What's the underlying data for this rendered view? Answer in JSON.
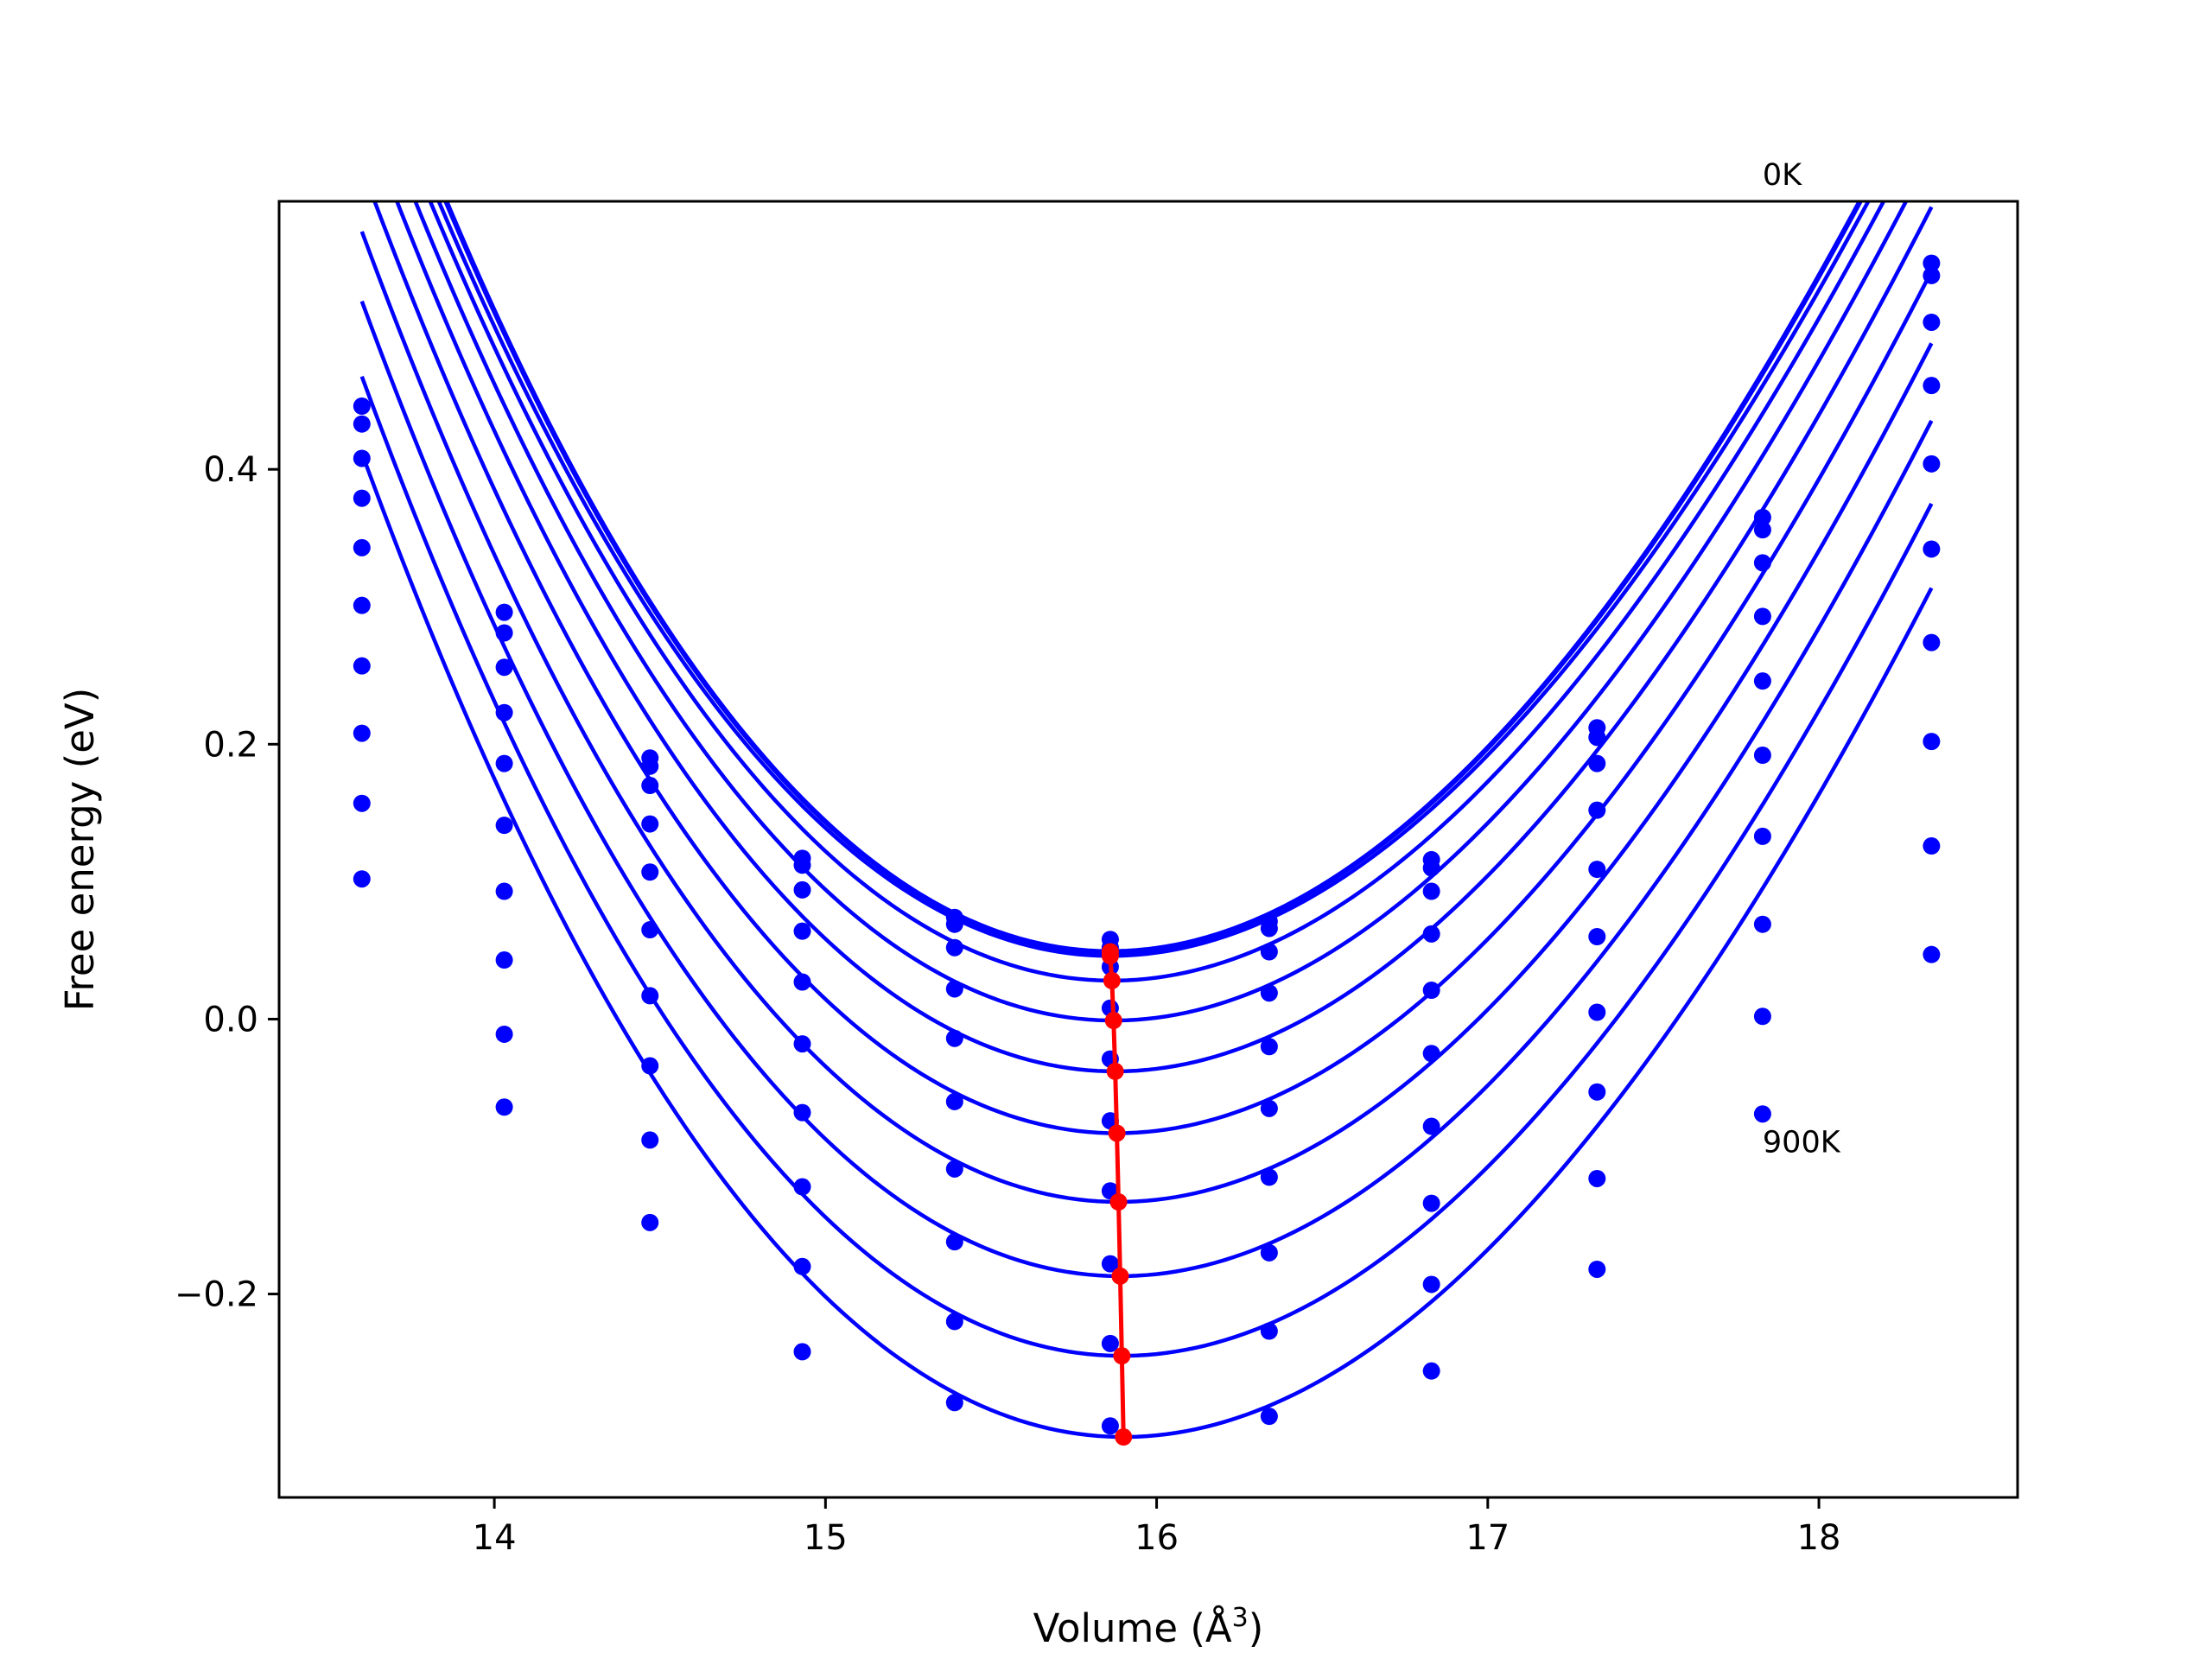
{
  "chart_data": {
    "type": "line",
    "title": "",
    "xlabel": "Volume (Å",
    "xlabel_sup": "3",
    "xlabel_close": ")",
    "ylabel": "Free energy (eV)",
    "xlim": [
      13.35,
      18.6
    ],
    "ylim": [
      -0.348,
      0.595
    ],
    "xticks": [
      14,
      15,
      16,
      17,
      18
    ],
    "yticks": [
      -0.2,
      0.0,
      0.2,
      0.4
    ],
    "ytick_labels": [
      "−0.2",
      "0.0",
      "0.2",
      "0.4"
    ],
    "grid": false,
    "legend": "none",
    "colors": {
      "curves": "#0000ff",
      "minimum": "#ff0000"
    },
    "annotations": [
      {
        "text": "0K",
        "x": 17.83,
        "y": 0.607
      },
      {
        "text": "900K",
        "x": 17.83,
        "y": -0.097
      }
    ],
    "sample_volumes": [
      13.6,
      14.03,
      14.47,
      14.93,
      15.39,
      15.86,
      16.34,
      16.83,
      17.33,
      17.83,
      18.34
    ],
    "series": [
      {
        "min_volume": 15.86,
        "min_energy": 0.049,
        "a": 0.122,
        "b": 0.187,
        "points": [
          0.446,
          0.296,
          0.19,
          0.117,
          0.074,
          0.058,
          0.071,
          0.116,
          0.212,
          0.365,
          0.55
        ]
      },
      {
        "min_volume": 15.86,
        "min_energy": 0.046,
        "a": 0.12,
        "b": 0.185,
        "points": [
          0.433,
          0.281,
          0.184,
          0.112,
          0.069,
          0.052,
          0.066,
          0.11,
          0.205,
          0.356,
          0.541
        ]
      },
      {
        "min_volume": 15.865,
        "min_energy": 0.028,
        "a": 0.12,
        "b": 0.186,
        "points": [
          0.408,
          0.256,
          0.17,
          0.094,
          0.052,
          0.038,
          0.049,
          0.093,
          0.186,
          0.332,
          0.507
        ]
      },
      {
        "min_volume": 15.87,
        "min_energy": -0.001,
        "a": 0.12,
        "b": 0.185,
        "points": [
          0.379,
          0.223,
          0.142,
          0.064,
          0.022,
          0.008,
          0.019,
          0.062,
          0.152,
          0.293,
          0.461
        ]
      },
      {
        "min_volume": 15.875,
        "min_energy": -0.038,
        "a": 0.12,
        "b": 0.186,
        "points": [
          0.343,
          0.186,
          0.107,
          0.027,
          -0.014,
          -0.029,
          -0.02,
          0.021,
          0.109,
          0.246,
          0.404
        ]
      },
      {
        "min_volume": 15.88,
        "min_energy": -0.083,
        "a": 0.12,
        "b": 0.185,
        "points": [
          0.301,
          0.141,
          0.065,
          -0.018,
          -0.06,
          -0.074,
          -0.065,
          -0.025,
          0.06,
          0.192,
          0.342
        ]
      },
      {
        "min_volume": 15.885,
        "min_energy": -0.133,
        "a": 0.12,
        "b": 0.185,
        "points": [
          0.257,
          0.093,
          0.017,
          -0.068,
          -0.109,
          -0.125,
          -0.115,
          -0.078,
          0.005,
          0.133,
          0.274
        ]
      },
      {
        "min_volume": 15.89,
        "min_energy": -0.187,
        "a": 0.12,
        "b": 0.185,
        "points": [
          0.208,
          0.043,
          -0.034,
          -0.122,
          -0.162,
          -0.178,
          -0.17,
          -0.134,
          -0.053,
          0.069,
          0.202
        ]
      },
      {
        "min_volume": 15.895,
        "min_energy": -0.245,
        "a": 0.12,
        "b": 0.185,
        "points": [
          0.157,
          -0.011,
          -0.088,
          -0.18,
          -0.22,
          -0.236,
          -0.227,
          -0.193,
          -0.116,
          0.002,
          0.126
        ]
      },
      {
        "min_volume": 15.9,
        "min_energy": -0.304,
        "a": 0.12,
        "b": 0.185,
        "points": [
          0.102,
          -0.064,
          -0.148,
          -0.242,
          -0.279,
          -0.296,
          -0.289,
          -0.256,
          -0.182,
          -0.069,
          0.047
        ]
      }
    ]
  }
}
